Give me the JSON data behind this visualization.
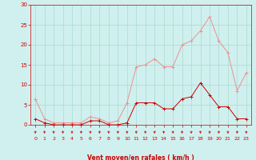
{
  "hours": [
    0,
    1,
    2,
    3,
    4,
    5,
    6,
    7,
    8,
    9,
    10,
    11,
    12,
    13,
    14,
    15,
    16,
    17,
    18,
    19,
    20,
    21,
    22,
    23
  ],
  "vent_moyen": [
    1.5,
    0.5,
    0,
    0,
    0,
    0,
    1,
    1,
    0,
    0,
    0.5,
    5.5,
    5.5,
    5.5,
    4,
    4,
    6.5,
    7,
    10.5,
    7.5,
    4.5,
    4.5,
    1.5,
    1.5
  ],
  "rafales": [
    6.5,
    1.5,
    0.5,
    0.5,
    0.5,
    0.5,
    2.0,
    1.5,
    0.5,
    1.0,
    5.5,
    14.5,
    15.0,
    16.5,
    14.5,
    14.5,
    20.0,
    21.0,
    23.5,
    27.0,
    21.0,
    18.0,
    8.5,
    13.0
  ],
  "ylim": [
    0,
    30
  ],
  "yticks": [
    0,
    5,
    10,
    15,
    20,
    25,
    30
  ],
  "bg_color": "#cff0ee",
  "grid_color": "#aad8d4",
  "line_color_moyen": "#cc0000",
  "line_color_rafales": "#ee9090",
  "xlabel": "Vent moyen/en rafales ( km/h )",
  "xlabel_color": "#cc0000",
  "tick_color": "#cc0000",
  "arrow_color": "#cc0000",
  "figsize": [
    3.2,
    2.0
  ],
  "dpi": 100
}
